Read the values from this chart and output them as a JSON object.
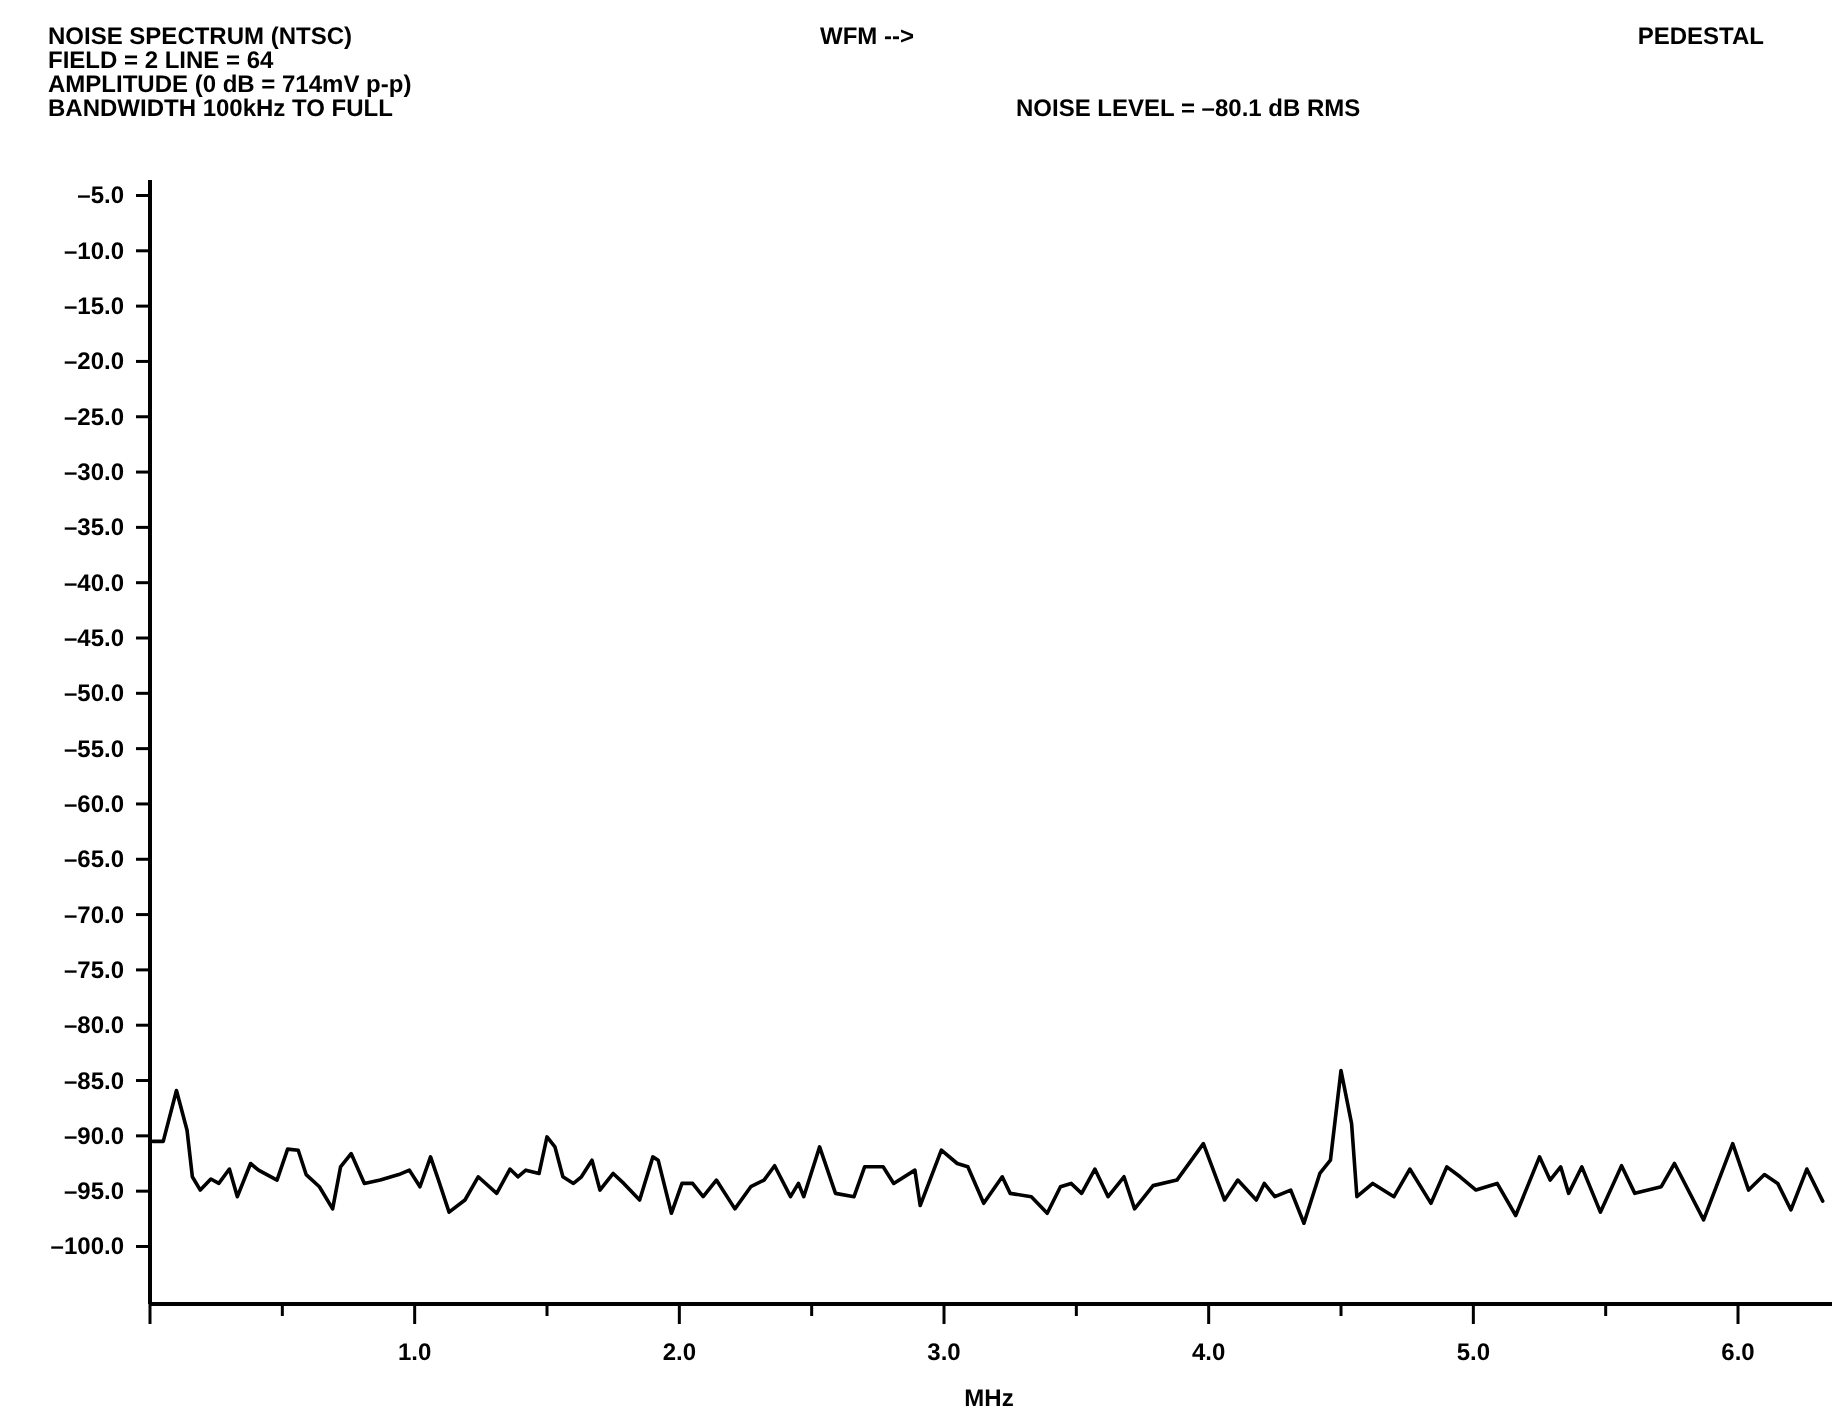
{
  "chart_data": {
    "type": "line",
    "title": "NOISE SPECTRUM (NTSC)",
    "xlabel": "MHz",
    "annotations": [
      "FIELD = 2 LINE = 64",
      "AMPLITUDE (0 dB = 714mV p-p)",
      "BANDWIDTH 100kHz TO FULL",
      "WFM -->",
      "PEDESTAL",
      "NOISE LEVEL = –80.1 dB RMS"
    ],
    "xlim": [
      0,
      6.34
    ],
    "ylim": [
      -105.2,
      -3.6
    ],
    "xticks": [
      {
        "value": 0,
        "label": null
      },
      {
        "value": 0.5,
        "label": null
      },
      {
        "value": 1,
        "label": "1.0"
      },
      {
        "value": 1.5,
        "label": null
      },
      {
        "value": 2,
        "label": "2.0"
      },
      {
        "value": 2.5,
        "label": null
      },
      {
        "value": 3,
        "label": "3.0"
      },
      {
        "value": 3.5,
        "label": null
      },
      {
        "value": 4,
        "label": "4.0"
      },
      {
        "value": 4.5,
        "label": null
      },
      {
        "value": 5,
        "label": "5.0"
      },
      {
        "value": 5.5,
        "label": null
      },
      {
        "value": 6,
        "label": "6.0"
      }
    ],
    "yticks": [
      {
        "value": -5,
        "label": "–5.0"
      },
      {
        "value": -10,
        "label": "–10.0"
      },
      {
        "value": -15,
        "label": "–15.0"
      },
      {
        "value": -20,
        "label": "–20.0"
      },
      {
        "value": -25,
        "label": "–25.0"
      },
      {
        "value": -30,
        "label": "–30.0"
      },
      {
        "value": -35,
        "label": "–35.0"
      },
      {
        "value": -40,
        "label": "–40.0"
      },
      {
        "value": -45,
        "label": "–45.0"
      },
      {
        "value": -50,
        "label": "–50.0"
      },
      {
        "value": -55,
        "label": "–55.0"
      },
      {
        "value": -60,
        "label": "–60.0"
      },
      {
        "value": -65,
        "label": "–65.0"
      },
      {
        "value": -70,
        "label": "–70.0"
      },
      {
        "value": -75,
        "label": "–75.0"
      },
      {
        "value": -80,
        "label": "–80.0"
      },
      {
        "value": -85,
        "label": "–85.0"
      },
      {
        "value": -90,
        "label": "–90.0"
      },
      {
        "value": -95,
        "label": "–95.0"
      },
      {
        "value": -100,
        "label": "–100.0"
      }
    ],
    "marker": "none",
    "line_style": "solid",
    "series": [
      {
        "color": "#000000",
        "x": [
          0.01,
          0.05,
          0.1,
          0.14,
          0.16,
          0.19,
          0.23,
          0.26,
          0.3,
          0.33,
          0.38,
          0.41,
          0.48,
          0.52,
          0.56,
          0.59,
          0.64,
          0.69,
          0.72,
          0.76,
          0.81,
          0.87,
          0.94,
          0.98,
          1.02,
          1.06,
          1.09,
          1.13,
          1.19,
          1.24,
          1.31,
          1.36,
          1.39,
          1.42,
          1.47,
          1.5,
          1.53,
          1.56,
          1.6,
          1.63,
          1.67,
          1.7,
          1.75,
          1.79,
          1.85,
          1.9,
          1.92,
          1.97,
          2.01,
          2.05,
          2.09,
          2.14,
          2.21,
          2.27,
          2.32,
          2.36,
          2.42,
          2.45,
          2.47,
          2.53,
          2.59,
          2.66,
          2.7,
          2.77,
          2.81,
          2.89,
          2.91,
          2.99,
          3.05,
          3.09,
          3.15,
          3.22,
          3.25,
          3.33,
          3.39,
          3.44,
          3.48,
          3.52,
          3.57,
          3.62,
          3.68,
          3.72,
          3.79,
          3.88,
          3.98,
          4.06,
          4.11,
          4.18,
          4.21,
          4.25,
          4.31,
          4.36,
          4.42,
          4.46,
          4.5,
          4.54,
          4.56,
          4.62,
          4.7,
          4.76,
          4.84,
          4.9,
          4.95,
          5.01,
          5.09,
          5.16,
          5.25,
          5.29,
          5.33,
          5.36,
          5.41,
          5.48,
          5.56,
          5.61,
          5.71,
          5.76,
          5.87,
          5.98,
          6.04,
          6.1,
          6.15,
          6.2,
          6.26,
          6.32
        ],
        "values": [
          -90.5,
          -90.5,
          -85.9,
          -89.5,
          -93.7,
          -94.9,
          -93.9,
          -94.3,
          -93.0,
          -95.5,
          -92.5,
          -93.1,
          -94.0,
          -91.2,
          -91.3,
          -93.5,
          -94.6,
          -96.6,
          -92.8,
          -91.6,
          -94.3,
          -94.0,
          -93.5,
          -93.1,
          -94.6,
          -91.9,
          -94.0,
          -96.9,
          -95.8,
          -93.7,
          -95.2,
          -93.0,
          -93.7,
          -93.1,
          -93.4,
          -90.1,
          -91.0,
          -93.7,
          -94.3,
          -93.7,
          -92.2,
          -94.9,
          -93.4,
          -94.3,
          -95.8,
          -91.9,
          -92.2,
          -97.0,
          -94.3,
          -94.3,
          -95.5,
          -94.0,
          -96.6,
          -94.6,
          -94.0,
          -92.7,
          -95.5,
          -94.3,
          -95.5,
          -91.0,
          -95.2,
          -95.5,
          -92.8,
          -92.8,
          -94.3,
          -93.1,
          -96.3,
          -91.3,
          -92.5,
          -92.8,
          -96.1,
          -93.7,
          -95.2,
          -95.5,
          -97.0,
          -94.6,
          -94.3,
          -95.2,
          -93.0,
          -95.5,
          -93.7,
          -96.6,
          -94.5,
          -94.0,
          -90.7,
          -95.8,
          -94.0,
          -95.8,
          -94.3,
          -95.5,
          -94.9,
          -97.9,
          -93.4,
          -92.2,
          -84.1,
          -88.9,
          -95.5,
          -94.3,
          -95.5,
          -93.0,
          -96.1,
          -92.8,
          -93.7,
          -94.9,
          -94.3,
          -97.2,
          -91.9,
          -94.0,
          -92.8,
          -95.2,
          -92.8,
          -96.9,
          -92.7,
          -95.2,
          -94.6,
          -92.5,
          -97.6,
          -90.7,
          -94.9,
          -93.5,
          -94.3,
          -96.7,
          -93.0,
          -95.9
        ]
      }
    ]
  }
}
